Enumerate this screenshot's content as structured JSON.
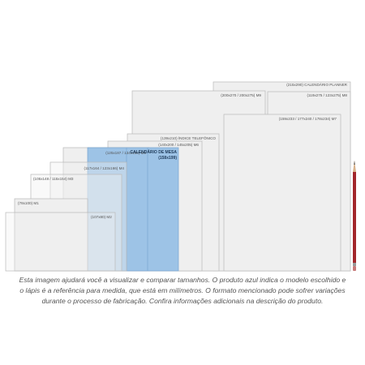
{
  "sizes": [
    {
      "label": "(215x290) CALENDÁRIO PLANNER"
    },
    {
      "label": "(200x270 / 200x275) M9"
    },
    {
      "label": "(119x275 / 123x275) M8"
    },
    {
      "label": "(159x233 / 177x240 / 178x234) M7"
    },
    {
      "label": "(139x210) ÍNDICE TELEFÔNICO"
    },
    {
      "label": "(140x200 / 145x205) M6"
    },
    {
      "label": "(125x187 / 134x192) M5"
    },
    {
      "label": "CALENDÁRIO DE MESA",
      "sublabel": "(158x199)"
    },
    {
      "label": "(117x164 / 123x166) M4"
    },
    {
      "label": "(105x148 / 115x154) M3"
    },
    {
      "label": "(78x100) M1"
    },
    {
      "label": "(107x80) M2"
    }
  ],
  "caption": [
    "Esta imagem ajudará você a visualizar e comparar tamanhos. O produto azul indica o modelo escolhido e",
    "o lápis é a referência para medida, que está em milímetros. O formato mencionado pode sofrer variações",
    "durante o processo de fabricação. Confira informações adicionais na descrição do produto."
  ]
}
